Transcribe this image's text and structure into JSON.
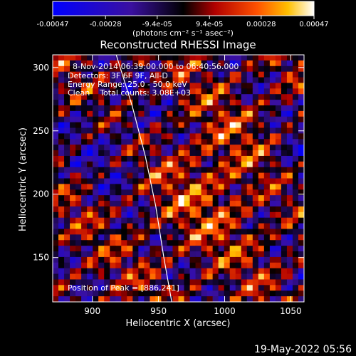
{
  "chart_data": {
    "type": "heatmap",
    "title": "Reconstructed RHESSI Image",
    "xlabel": "Heliocentric X (arcsec)",
    "ylabel": "Heliocentric Y (arcsec)",
    "xlim": [
      870,
      1060
    ],
    "ylim": [
      115,
      310
    ],
    "x_ticks": [
      900,
      950,
      1000,
      1050
    ],
    "y_ticks": [
      150,
      200,
      250,
      300
    ],
    "colorbar": {
      "min": -0.00047,
      "max": 0.00047,
      "tick_labels": [
        "-0.00047",
        "-0.00028",
        "-9.4e-05",
        "9.4e-05",
        "0.00028",
        "0.00047"
      ],
      "tick_values": [
        -0.00047,
        -0.00028,
        -9.4e-05,
        9.4e-05,
        0.00028,
        0.00047
      ],
      "label": "(photons cm⁻² s⁻¹ asec⁻²)"
    },
    "annotations": {
      "time": "8-Nov-2014 06:39:00.000 to 06:40:56.000",
      "detectors": "Detectors: 3F 6F 9F, All-D",
      "energy": "Energy Range: 25.0 - 50.0 keV",
      "clean": "Clean    Total counts: 3.08E+03",
      "peak": "Position of Peak = [886,241]"
    },
    "peak": [
      886,
      241
    ],
    "limb_curve": [
      [
        918,
        310
      ],
      [
        930,
        270
      ],
      [
        940,
        230
      ],
      [
        948,
        190
      ],
      [
        954,
        150
      ],
      [
        960,
        115
      ]
    ]
  },
  "footer_date": "19-May-2022 05:56"
}
